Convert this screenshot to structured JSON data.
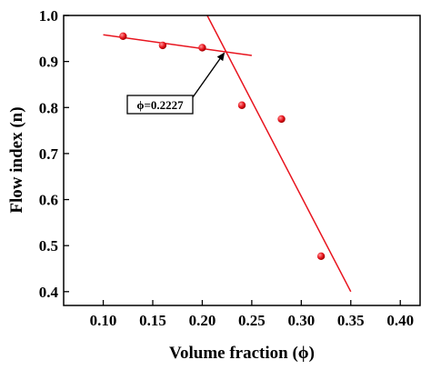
{
  "chart_data": {
    "type": "scatter",
    "xlabel": "Volume fraction (ϕ)",
    "ylabel": "Flow index (n)",
    "xlim": [
      0.06,
      0.42
    ],
    "ylim": [
      0.37,
      1.0
    ],
    "x_ticks": [
      0.1,
      0.15,
      0.2,
      0.25,
      0.3,
      0.35,
      0.4
    ],
    "x_tick_labels": [
      "0.10",
      "0.15",
      "0.20",
      "0.25",
      "0.30",
      "0.35",
      "0.40"
    ],
    "y_ticks": [
      0.4,
      0.5,
      0.6,
      0.7,
      0.8,
      0.9,
      1.0
    ],
    "y_tick_labels": [
      "0.4",
      "0.5",
      "0.6",
      "0.7",
      "0.8",
      "0.9",
      "1.0"
    ],
    "grid": false,
    "series": [
      {
        "x": [
          0.12,
          0.16,
          0.2,
          0.24,
          0.28,
          0.32
        ],
        "y": [
          0.955,
          0.935,
          0.93,
          0.805,
          0.775,
          0.477
        ],
        "color": "#e8141e"
      }
    ],
    "fit_lines": [
      {
        "x": [
          0.1,
          0.25
        ],
        "y": [
          0.958,
          0.913
        ],
        "color": "#e8141e"
      },
      {
        "x": [
          0.205,
          0.35
        ],
        "y": [
          1.0,
          0.4
        ],
        "color": "#e8141e"
      }
    ],
    "annotation": {
      "text": "ϕ=0.2227",
      "point": [
        0.2227,
        0.92
      ],
      "label_position": "left-below"
    }
  }
}
